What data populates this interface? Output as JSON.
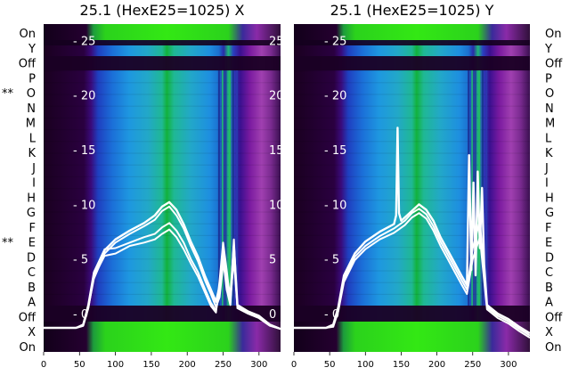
{
  "chart_data": [
    {
      "type": "heatmap",
      "title": "25.1 (HexE25=1025) X",
      "x_ticks": [
        0,
        50,
        100,
        150,
        200,
        250,
        300
      ],
      "xlim": [
        0,
        330
      ],
      "y_ticks": [
        "- 25",
        "- 20",
        "- 15",
        "- 10",
        "- 5",
        "- 0"
      ],
      "y_tick_values": [
        25,
        20,
        15,
        10,
        5,
        0
      ],
      "ylim": [
        -3.5,
        26.5
      ],
      "row_labels": [
        "On",
        "Y",
        "Off",
        "P",
        "O",
        "N",
        "M",
        "L",
        "K",
        "J",
        "I",
        "H",
        "G",
        "F",
        "E",
        "D",
        "C",
        "B",
        "A",
        "Off",
        "X",
        "On"
      ],
      "row_markers": [
        {
          "row": "O",
          "text": "**"
        },
        {
          "row": "E",
          "text": "**"
        }
      ],
      "series": [
        {
          "x": [
            0,
            45,
            55,
            62,
            70,
            85,
            100,
            120,
            140,
            155,
            165,
            175,
            185,
            195,
            205,
            215,
            225,
            233,
            240,
            245,
            250,
            255,
            260,
            265,
            270,
            285,
            300,
            315,
            330
          ],
          "y": [
            -1.3,
            -1.3,
            -1.1,
            0.5,
            3.5,
            5.8,
            6.8,
            7.6,
            8.3,
            9.0,
            9.8,
            10.2,
            9.5,
            8.2,
            6.6,
            5.2,
            3.4,
            2.2,
            1.1,
            2.5,
            6.0,
            3.5,
            1.5,
            6.2,
            0.8,
            0.2,
            -0.2,
            -1.0,
            -1.4
          ]
        },
        {
          "x": [
            0,
            45,
            55,
            62,
            70,
            85,
            100,
            120,
            140,
            155,
            165,
            175,
            185,
            195,
            205,
            215,
            225,
            233,
            240,
            245,
            250,
            255,
            260,
            265,
            270,
            285,
            300,
            315,
            330
          ],
          "y": [
            -1.3,
            -1.3,
            -1.1,
            0.5,
            3.2,
            5.5,
            6.5,
            7.3,
            8.0,
            8.6,
            9.4,
            9.8,
            9.0,
            7.8,
            6.2,
            4.8,
            3.0,
            1.8,
            0.6,
            1.5,
            4.5,
            3.0,
            1.2,
            5.0,
            0.5,
            0.0,
            -0.4,
            -1.1,
            -1.4
          ]
        },
        {
          "x": [
            0,
            45,
            55,
            62,
            70,
            85,
            100,
            120,
            140,
            155,
            165,
            175,
            185,
            195,
            205,
            215,
            225,
            233,
            240,
            245,
            250,
            255,
            260,
            265,
            270,
            285,
            300,
            315,
            330
          ],
          "y": [
            -1.3,
            -1.3,
            -1.0,
            0.8,
            3.8,
            5.9,
            6.0,
            6.5,
            7.0,
            7.3,
            7.9,
            8.3,
            7.6,
            6.5,
            5.0,
            3.8,
            2.2,
            1.0,
            0.3,
            2.0,
            5.0,
            2.2,
            0.8,
            5.6,
            0.6,
            0.1,
            -0.3,
            -1.0,
            -1.4
          ]
        },
        {
          "x": [
            0,
            45,
            55,
            62,
            70,
            85,
            100,
            120,
            140,
            155,
            165,
            175,
            185,
            195,
            205,
            215,
            225,
            233,
            240,
            245,
            250,
            255,
            260,
            265,
            270,
            285,
            300,
            315,
            330
          ],
          "y": [
            -1.3,
            -1.3,
            -1.0,
            0.6,
            3.4,
            5.3,
            5.5,
            6.2,
            6.5,
            6.8,
            7.3,
            7.7,
            7.0,
            5.9,
            4.6,
            3.4,
            1.9,
            0.7,
            0.1,
            3.0,
            6.5,
            4.0,
            1.0,
            6.8,
            0.5,
            0.0,
            -0.4,
            -1.1,
            -1.4
          ]
        }
      ]
    },
    {
      "type": "heatmap",
      "title": "25.1 (HexE25=1025) Y",
      "x_ticks": [
        0,
        50,
        100,
        150,
        200,
        250,
        300
      ],
      "xlim": [
        0,
        330
      ],
      "y_ticks": [
        "- 25",
        "- 20",
        "- 15",
        "- 10",
        "- 5",
        "- 0"
      ],
      "y_tick_values": [
        25,
        20,
        15,
        10,
        5,
        0
      ],
      "ylim": [
        -3.5,
        26.5
      ],
      "row_labels": [
        "On",
        "Y",
        "Off",
        "P",
        "O",
        "N",
        "M",
        "L",
        "K",
        "J",
        "I",
        "H",
        "G",
        "F",
        "E",
        "D",
        "C",
        "B",
        "A",
        "Off",
        "X",
        "On"
      ],
      "series": [
        {
          "x": [
            0,
            45,
            55,
            62,
            70,
            85,
            100,
            120,
            140,
            143,
            145,
            147,
            150,
            165,
            175,
            185,
            195,
            205,
            215,
            225,
            235,
            242,
            245,
            248,
            251,
            254,
            257,
            260,
            263,
            266,
            270,
            285,
            300,
            315,
            330
          ],
          "y": [
            -1.3,
            -1.3,
            -1.0,
            0.6,
            3.5,
            5.5,
            6.6,
            7.5,
            8.2,
            9.0,
            17.0,
            9.2,
            8.5,
            9.4,
            10.0,
            9.5,
            8.5,
            7.0,
            5.8,
            4.6,
            3.4,
            2.6,
            14.5,
            4.0,
            12.0,
            3.5,
            13.0,
            6.0,
            11.5,
            4.5,
            0.8,
            0.0,
            -0.5,
            -1.2,
            -1.8
          ]
        },
        {
          "x": [
            0,
            45,
            55,
            62,
            70,
            85,
            100,
            120,
            140,
            155,
            165,
            175,
            185,
            195,
            205,
            215,
            225,
            235,
            242,
            250,
            260,
            270,
            285,
            300,
            315,
            330
          ],
          "y": [
            -1.3,
            -1.3,
            -1.1,
            0.4,
            3.2,
            5.2,
            6.2,
            7.1,
            7.8,
            8.5,
            9.2,
            9.6,
            9.1,
            8.0,
            6.6,
            5.4,
            4.2,
            3.0,
            2.2,
            6.0,
            8.5,
            0.6,
            -0.2,
            -0.7,
            -1.4,
            -2.0
          ]
        },
        {
          "x": [
            0,
            45,
            55,
            62,
            70,
            85,
            100,
            120,
            140,
            155,
            165,
            175,
            185,
            195,
            205,
            215,
            225,
            235,
            242,
            250,
            260,
            270,
            285,
            300,
            315,
            330
          ],
          "y": [
            -1.3,
            -1.3,
            -1.2,
            0.2,
            2.9,
            4.9,
            5.9,
            6.8,
            7.4,
            8.1,
            8.8,
            9.2,
            8.7,
            7.6,
            6.2,
            5.0,
            3.8,
            2.6,
            1.8,
            5.0,
            7.0,
            0.4,
            -0.4,
            -0.9,
            -1.6,
            -2.2
          ]
        }
      ]
    }
  ]
}
